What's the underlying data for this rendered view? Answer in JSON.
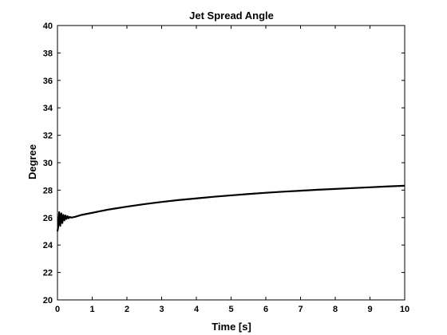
{
  "chart_data": {
    "type": "line",
    "title": "Jet Spread Angle",
    "xlabel": "Time [s]",
    "ylabel": "Degree",
    "xlim": [
      0,
      10
    ],
    "ylim": [
      20,
      40
    ],
    "xticks": [
      0,
      1,
      2,
      3,
      4,
      5,
      6,
      7,
      8,
      9,
      10
    ],
    "yticks": [
      20,
      22,
      24,
      26,
      28,
      30,
      32,
      34,
      36,
      38,
      40
    ],
    "grid": false,
    "series": [
      {
        "color": "#000000",
        "x": [
          0,
          0.02,
          0.05,
          0.08,
          0.11,
          0.14,
          0.17,
          0.2,
          0.23,
          0.26,
          0.29,
          0.32,
          0.35,
          0.4,
          0.5,
          0.7,
          1,
          1.5,
          2,
          2.5,
          3,
          3.5,
          4,
          4.5,
          5,
          5.5,
          6,
          6.5,
          7,
          7.5,
          8,
          8.5,
          9,
          9.5,
          10
        ],
        "y": [
          25.0,
          25.3,
          26.4,
          25.4,
          26.3,
          25.6,
          26.2,
          25.8,
          26.15,
          25.9,
          26.1,
          25.95,
          26.05,
          26.0,
          26.05,
          26.2,
          26.35,
          26.6,
          26.8,
          26.98,
          27.14,
          27.28,
          27.4,
          27.52,
          27.62,
          27.72,
          27.81,
          27.89,
          27.96,
          28.03,
          28.09,
          28.15,
          28.21,
          28.27,
          28.32
        ]
      }
    ]
  }
}
